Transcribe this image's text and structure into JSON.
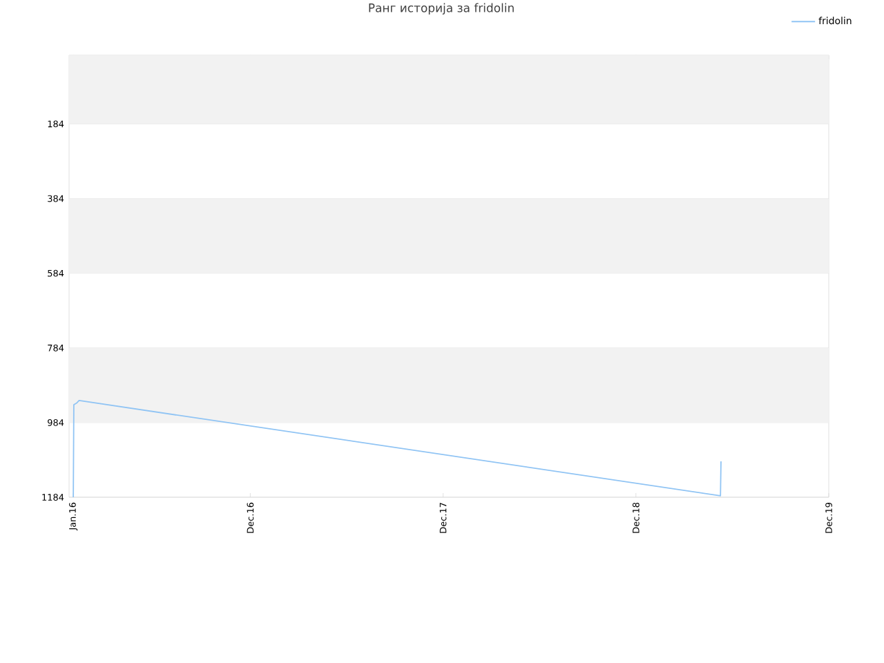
{
  "chart_data": {
    "type": "line",
    "title": "Ранг историја за fridolin",
    "x": [
      "2016-01-01",
      "2016-01-02",
      "2016-01-07",
      "2016-01-12",
      "2019-05-10",
      "2019-05-11"
    ],
    "series": [
      {
        "name": "fridolin",
        "color": "#90c4f4",
        "values": [
          1184,
          936,
          932,
          925,
          1180,
          1088
        ]
      }
    ],
    "xlim": [
      "2015-12-24",
      "2019-12-01"
    ],
    "xticks": [
      {
        "value": "2016-01-01",
        "label": "Jan.16"
      },
      {
        "value": "2016-12-01",
        "label": "Dec.16"
      },
      {
        "value": "2017-12-01",
        "label": "Dec.17"
      },
      {
        "value": "2018-12-01",
        "label": "Dec.18"
      },
      {
        "value": "2019-12-01",
        "label": "Dec.19"
      }
    ],
    "ylim": [
      1184,
      0
    ],
    "yticks": [
      184,
      384,
      584,
      784,
      984,
      1184
    ],
    "grid": "y",
    "legend": "top right",
    "marker": "none",
    "line_style": "solid"
  }
}
